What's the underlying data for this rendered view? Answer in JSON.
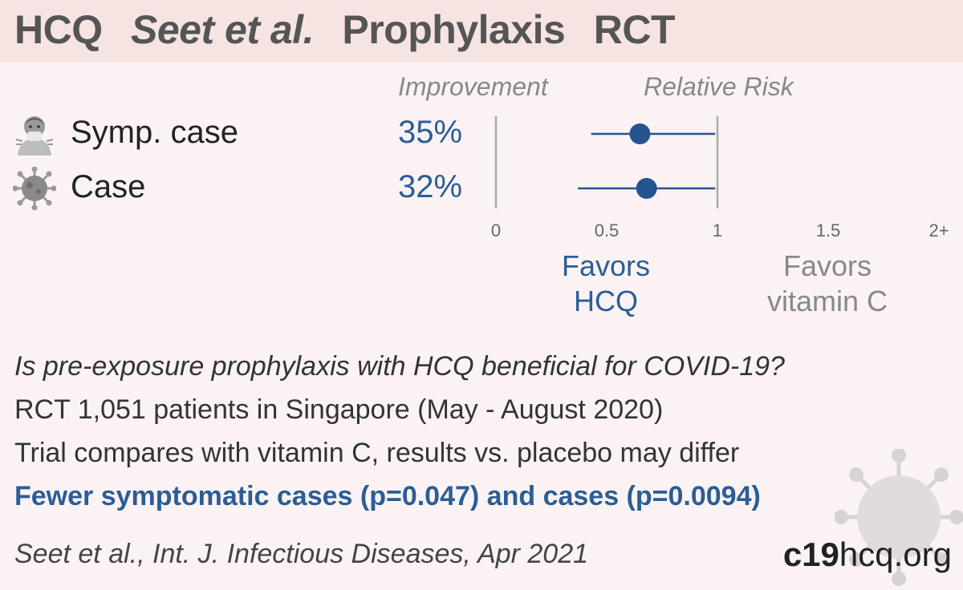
{
  "header": {
    "title_parts": [
      "HCQ",
      "Seet et al.",
      "Prophylaxis",
      "RCT"
    ]
  },
  "columns": {
    "improvement": "Improvement",
    "relative_risk": "Relative Risk"
  },
  "rows": [
    {
      "icon": "sick-person-icon",
      "label": "Symp. case",
      "improvement": "35%"
    },
    {
      "icon": "virus-icon",
      "label": "Case",
      "improvement": "32%"
    }
  ],
  "favors": {
    "left": [
      "Favors",
      "HCQ"
    ],
    "right": [
      "Favors",
      "vitamin C"
    ]
  },
  "info": {
    "question": "Is pre-exposure prophylaxis with HCQ beneficial for COVID-19?",
    "design": "RCT 1,051 patients in Singapore (May - August 2020)",
    "comparison": "Trial compares with vitamin C, results vs. placebo may differ",
    "result": "Fewer symptomatic cases (p=0.047) and cases (p=0.0094)"
  },
  "citation": "Seet et al., Int. J. Infectious Diseases, Apr 2021",
  "brand": {
    "bold": "c19",
    "rest": "hcq.org"
  },
  "colors": {
    "point": "#24548f",
    "favor_hcq": "#2b5d97",
    "favor_control": "#888888",
    "axis": "#aaaaaa"
  },
  "chart_data": {
    "type": "scatter",
    "title": "",
    "xlabel": "Relative Risk",
    "ylabel": "",
    "xlim": [
      0,
      2
    ],
    "x_ticks": [
      0,
      0.5,
      1,
      1.5,
      2
    ],
    "x_tick_labels": [
      "0",
      "0.5",
      "1",
      "1.5",
      "2+"
    ],
    "reference_line": 1,
    "categories": [
      "Symp. case",
      "Case"
    ],
    "series": [
      {
        "values": [
          0.65,
          0.68
        ],
        "ci_lower": [
          0.43,
          0.37
        ],
        "ci_upper": [
          0.99,
          0.99
        ]
      }
    ]
  }
}
